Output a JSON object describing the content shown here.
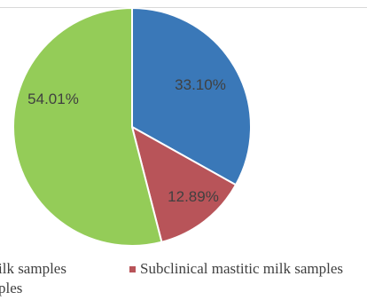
{
  "chart_data": {
    "type": "pie",
    "title": "",
    "slices": [
      {
        "label": "Subclinical mastitic milk samples",
        "value": 33.1,
        "display": "33.10%",
        "color": "#3a78b8"
      },
      {
        "label": "Subclinical mastitic milk samples",
        "value": 12.89,
        "display": "12.89%",
        "color": "#b85459"
      },
      {
        "label": "",
        "value": 54.01,
        "display": "54.01%",
        "color": "#94cc58"
      }
    ],
    "legend": {
      "placement": "bottom",
      "entries": [
        {
          "text": "ilk samples",
          "color": "#94cc58",
          "swatch_visible": false
        },
        {
          "text": "Subclinical mastitic milk samples",
          "color": "#b85459",
          "swatch_visible": true
        },
        {
          "text": "ples",
          "color": "#94cc58",
          "swatch_visible": false
        }
      ]
    }
  }
}
